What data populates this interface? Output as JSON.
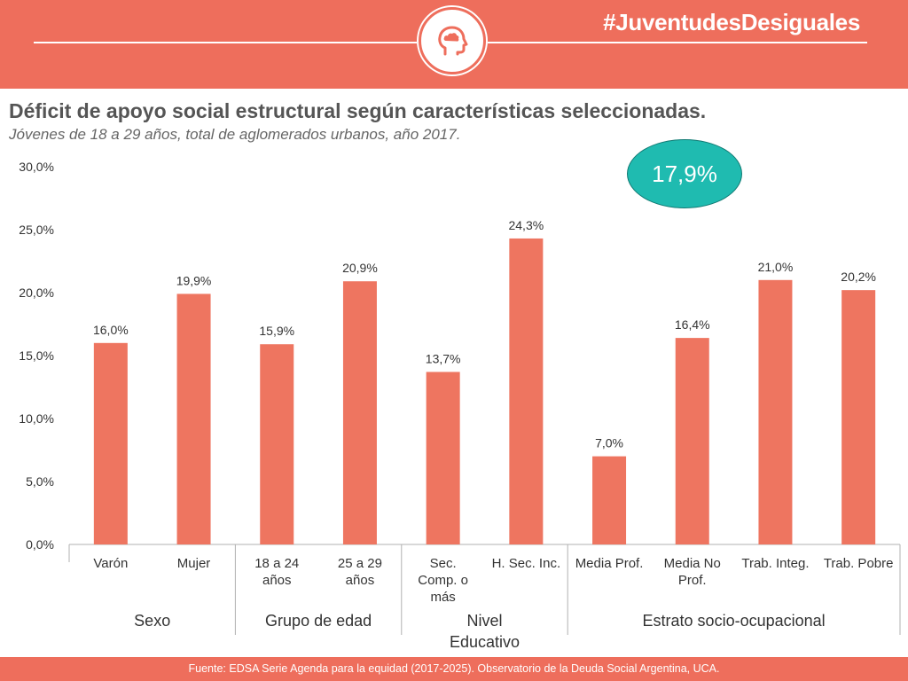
{
  "header": {
    "hashtag": "#JuventudesDesiguales",
    "icon": "head-with-cloud-icon"
  },
  "title": "Déficit de apoyo social estructural según características seleccionadas.",
  "subtitle": "Jóvenes de 18 a 29 años, total de aglomerados urbanos, año 2017.",
  "badge": "17,9%",
  "footer": "Fuente: EDSA Serie Agenda para la equidad (2017-2025). Observatorio de la Deuda Social Argentina, UCA.",
  "colors": {
    "accent": "#ee6e5c",
    "bar": "#ee7560",
    "badge": "#1fbbb0"
  },
  "chart_data": {
    "type": "bar",
    "categories": [
      [
        "Varón"
      ],
      [
        "Mujer"
      ],
      [
        "18 a 24",
        "años"
      ],
      [
        "25 a 29",
        "años"
      ],
      [
        "Sec.",
        "Comp. o",
        "más"
      ],
      [
        "H. Sec. Inc."
      ],
      [
        "Media Prof."
      ],
      [
        "Media No",
        "Prof."
      ],
      [
        "Trab. Integ."
      ],
      [
        "Trab. Pobre"
      ]
    ],
    "values": [
      16.0,
      19.9,
      15.9,
      20.9,
      13.7,
      24.3,
      7.0,
      16.4,
      21.0,
      20.2
    ],
    "value_labels": [
      "16,0%",
      "19,9%",
      "15,9%",
      "20,9%",
      "13,7%",
      "24,3%",
      "7,0%",
      "16,4%",
      "21,0%",
      "20,2%"
    ],
    "groups": [
      {
        "label": [
          "Sexo"
        ],
        "start": 0,
        "end": 1
      },
      {
        "label": [
          "Grupo de edad"
        ],
        "start": 2,
        "end": 3
      },
      {
        "label": [
          "Nivel",
          "Educativo"
        ],
        "start": 4,
        "end": 5
      },
      {
        "label": [
          "Estrato socio-ocupacional"
        ],
        "start": 6,
        "end": 9
      }
    ],
    "yticks": [
      "0,0%",
      "5,0%",
      "10,0%",
      "15,0%",
      "20,0%",
      "25,0%",
      "30,0%"
    ],
    "ylim": [
      0,
      30
    ],
    "ytick_step": 5,
    "grid": false
  }
}
